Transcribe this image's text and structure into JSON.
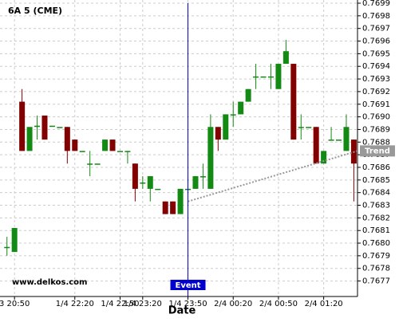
{
  "chart_data": {
    "type": "candlestick",
    "title": "6A 5 (CME)",
    "x_label": "Date",
    "watermark": "www.delkos.com",
    "categories": [
      null,
      "3 20:50",
      null,
      null,
      null,
      null,
      null,
      null,
      null,
      "1/4 22:20",
      null,
      null,
      null,
      null,
      null,
      "1/4 22:50",
      null,
      null,
      "1/4 23:20",
      null,
      null,
      null,
      null,
      null,
      "1/4 23:50",
      null,
      null,
      null,
      null,
      null,
      "2/4 00:20",
      null,
      null,
      null,
      null,
      null,
      "2/4 00:50",
      null,
      null,
      null,
      null,
      null,
      "2/4 01:20",
      null,
      null,
      null,
      null
    ],
    "open": [
      0.76797,
      0.76793,
      0.76912,
      0.76873,
      0.76892,
      0.76901,
      0.76893,
      0.76892,
      0.76892,
      0.76882,
      0.76873,
      0.76863,
      0.76863,
      0.76873,
      0.76882,
      0.76873,
      0.76873,
      0.76863,
      0.76848,
      0.76843,
      0.76843,
      0.76833,
      0.76833,
      0.76823,
      0.76843,
      0.76843,
      0.76853,
      0.76843,
      0.76892,
      0.76882,
      0.76902,
      0.76902,
      0.76912,
      0.76932,
      0.76932,
      0.76932,
      0.76922,
      0.76942,
      0.76942,
      0.76892,
      0.76892,
      0.76892,
      0.76863,
      0.76882,
      0.76882,
      0.76873,
      0.76882
    ],
    "high": [
      0.76805,
      0.76812,
      0.76922,
      0.76892,
      0.76901,
      0.76901,
      0.76893,
      0.76892,
      0.76892,
      0.76882,
      0.76873,
      0.76873,
      0.76863,
      0.76882,
      0.76882,
      0.76873,
      0.76873,
      0.76863,
      0.76853,
      0.76853,
      0.76843,
      0.76833,
      0.76833,
      0.76843,
      0.76853,
      0.76853,
      0.76863,
      0.76902,
      0.76892,
      0.76902,
      0.76912,
      0.76912,
      0.76922,
      0.76942,
      0.76932,
      0.76942,
      0.76942,
      0.76961,
      0.76942,
      0.76902,
      0.76892,
      0.76892,
      0.76873,
      0.76892,
      0.76882,
      0.76902,
      0.76882
    ],
    "low": [
      0.7679,
      0.76793,
      0.76873,
      0.76873,
      0.76882,
      0.76882,
      0.76893,
      0.76892,
      0.76863,
      0.76873,
      0.76873,
      0.76853,
      0.76863,
      0.76873,
      0.76873,
      0.76873,
      0.76863,
      0.76833,
      0.76843,
      0.76833,
      0.76843,
      0.76823,
      0.76823,
      0.76823,
      0.76843,
      0.76843,
      0.76843,
      0.76843,
      0.76873,
      0.76882,
      0.76892,
      0.76902,
      0.76912,
      0.76922,
      0.76932,
      0.76922,
      0.76922,
      0.76942,
      0.76882,
      0.76882,
      0.76892,
      0.76863,
      0.76863,
      0.76882,
      0.76882,
      0.76873,
      0.76833
    ],
    "close": [
      0.76797,
      0.76812,
      0.76873,
      0.76892,
      0.76893,
      0.76882,
      0.76893,
      0.76892,
      0.76873,
      0.76873,
      0.76873,
      0.76863,
      0.76863,
      0.76882,
      0.76873,
      0.76873,
      0.76873,
      0.76843,
      0.76848,
      0.76853,
      0.76843,
      0.76823,
      0.76823,
      0.76843,
      0.76843,
      0.76853,
      0.76853,
      0.76892,
      0.76882,
      0.76902,
      0.76902,
      0.76912,
      0.76922,
      0.76932,
      0.76932,
      0.76932,
      0.76942,
      0.76952,
      0.76882,
      0.76892,
      0.76892,
      0.76863,
      0.76873,
      0.76882,
      0.76882,
      0.76892,
      0.76863
    ],
    "up_color": "#138a13",
    "down_color": "#820000",
    "ylim": [
      0.76759,
      0.7699
    ],
    "yticks": [
      0.7677,
      0.7678,
      0.7679,
      {
        "value": 0.768,
        "label": "0.7680"
      },
      0.7681,
      0.7682,
      0.7683,
      0.7684,
      0.7685,
      0.7686,
      0.7687,
      0.7688,
      0.7689,
      {
        "value": 0.769,
        "label": "0.7690"
      },
      0.7691,
      0.7692,
      0.7693,
      0.7694,
      0.7695,
      0.7696,
      0.7697,
      0.7698,
      0.7699
    ],
    "grid": true,
    "event": {
      "label": "Event",
      "index": 24,
      "color": "#0000cc"
    },
    "trend": {
      "label": "Trend",
      "start_index": 24,
      "start_value": 0.76833,
      "end_value": 0.76873,
      "color": "#999999"
    }
  }
}
